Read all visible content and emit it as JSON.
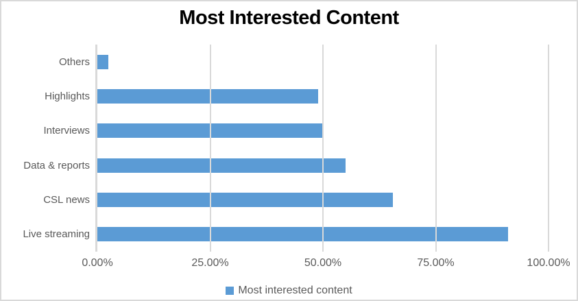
{
  "chart_data": {
    "type": "bar",
    "orientation": "horizontal",
    "title": "Most Interested Content",
    "categories_top_to_bottom": [
      "Others",
      "Highlights",
      "Interviews",
      "Data & reports",
      "CSL news",
      "Live streaming"
    ],
    "values_percent": [
      2.5,
      49,
      50,
      55,
      65.5,
      91
    ],
    "series": [
      {
        "name": "Most interested content",
        "color": "#5b9bd5"
      }
    ],
    "xlabel": "",
    "ylabel": "",
    "xlim": [
      0,
      100
    ],
    "x_tick_values": [
      0,
      25,
      50,
      75,
      100
    ],
    "x_tick_labels": [
      "0.00%",
      "25.00%",
      "50.00%",
      "75.00%",
      "100.00%"
    ],
    "gridlines": "vertical",
    "legend": {
      "position": "bottom",
      "label": "Most interested content",
      "swatch_color": "#5b9bd5"
    }
  },
  "colors": {
    "bar_fill": "#5b9bd5",
    "gridline": "#d9d9d9",
    "axis_line": "#d9d9d9",
    "frame_border": "#d9d9d9",
    "title_text": "#000000",
    "axis_text": "#595959",
    "background": "#ffffff"
  }
}
